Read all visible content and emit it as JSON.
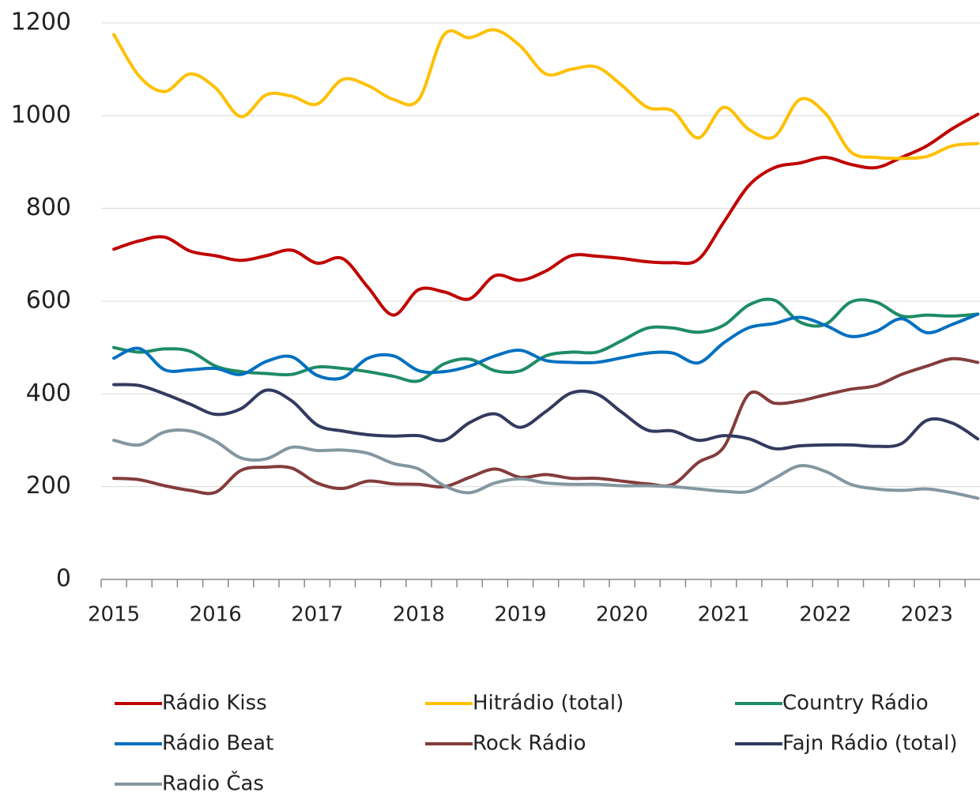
{
  "chart_data": {
    "type": "line",
    "categories": [
      "2015",
      null,
      null,
      null,
      "2016",
      null,
      null,
      null,
      "2017",
      null,
      null,
      null,
      "2018",
      null,
      null,
      null,
      "2019",
      null,
      null,
      null,
      "2020",
      null,
      null,
      null,
      "2021",
      null,
      null,
      null,
      "2022",
      null,
      null,
      null,
      "2023",
      null,
      null
    ],
    "ylim": [
      0,
      1200
    ],
    "yticks": [
      0,
      200,
      400,
      600,
      800,
      1000,
      1200
    ],
    "grid": true,
    "series": [
      {
        "name": "Rádio Kiss",
        "color": "#c00000",
        "values": [
          712,
          730,
          738,
          708,
          698,
          688,
          698,
          710,
          682,
          692,
          630,
          570,
          625,
          620,
          605,
          655,
          645,
          665,
          698,
          697,
          692,
          685,
          683,
          690,
          770,
          850,
          888,
          898,
          910,
          895,
          888,
          910,
          935,
          972,
          1003
        ]
      },
      {
        "name": "Hitrádio (total)",
        "color": "#ffc000",
        "values": [
          1175,
          1085,
          1052,
          1090,
          1060,
          998,
          1045,
          1042,
          1025,
          1078,
          1065,
          1035,
          1035,
          1175,
          1168,
          1185,
          1150,
          1090,
          1100,
          1105,
          1065,
          1018,
          1010,
          952,
          1018,
          970,
          955,
          1035,
          1005,
          922,
          910,
          908,
          912,
          935,
          940
        ]
      },
      {
        "name": "Country Rádio",
        "color": "#1e8c64",
        "values": [
          500,
          490,
          497,
          492,
          460,
          448,
          444,
          442,
          458,
          455,
          448,
          438,
          428,
          465,
          475,
          450,
          450,
          482,
          490,
          490,
          515,
          542,
          542,
          533,
          548,
          592,
          602,
          555,
          550,
          598,
          598,
          568,
          570,
          568,
          572
        ]
      },
      {
        "name": "Rádio Beat",
        "color": "#0070c0",
        "values": [
          477,
          498,
          452,
          452,
          455,
          442,
          470,
          480,
          440,
          435,
          477,
          482,
          450,
          448,
          460,
          482,
          494,
          472,
          468,
          468,
          478,
          488,
          488,
          467,
          510,
          543,
          552,
          565,
          548,
          524,
          535,
          562,
          532,
          550,
          572
        ]
      },
      {
        "name": "Rock Rádio",
        "color": "#843c3c",
        "values": [
          218,
          215,
          202,
          192,
          188,
          235,
          242,
          240,
          208,
          196,
          212,
          206,
          205,
          200,
          220,
          238,
          220,
          226,
          218,
          218,
          212,
          206,
          205,
          252,
          285,
          400,
          380,
          385,
          398,
          410,
          418,
          442,
          460,
          476,
          468
        ]
      },
      {
        "name": "Fajn Rádio (total)",
        "color": "#333a5e",
        "values": [
          420,
          418,
          400,
          378,
          356,
          368,
          408,
          385,
          333,
          320,
          312,
          309,
          310,
          300,
          338,
          357,
          328,
          362,
          402,
          400,
          360,
          322,
          320,
          300,
          310,
          303,
          282,
          288,
          290,
          290,
          287,
          293,
          343,
          337,
          303
        ]
      },
      {
        "name": "Radio Čas",
        "color": "#8497a0",
        "values": [
          300,
          290,
          318,
          320,
          298,
          262,
          260,
          285,
          278,
          279,
          272,
          250,
          238,
          202,
          187,
          208,
          217,
          208,
          205,
          205,
          202,
          202,
          200,
          195,
          190,
          190,
          218,
          245,
          233,
          205,
          195,
          192,
          195,
          187,
          175
        ]
      }
    ]
  }
}
